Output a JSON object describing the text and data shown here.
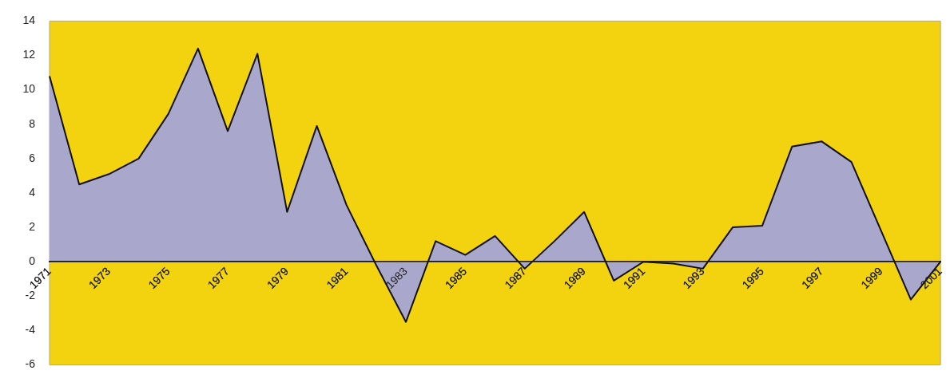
{
  "chart_data": {
    "type": "area",
    "categories": [
      "1971",
      null,
      "1973",
      null,
      "1975",
      null,
      "1977",
      null,
      "1979",
      null,
      "1981",
      null,
      "1983",
      null,
      "1985",
      null,
      "1987",
      null,
      "1989",
      null,
      "1991",
      null,
      "1993",
      null,
      "1995",
      null,
      "1997",
      null,
      "1999",
      null,
      "2001"
    ],
    "series": [
      {
        "color": "#a9a7cc",
        "values": [
          10.8,
          4.5,
          5.1,
          6.0,
          8.6,
          12.4,
          7.6,
          12.1,
          2.9,
          7.9,
          3.3,
          -0.2,
          -3.5,
          1.2,
          0.4,
          1.5,
          -0.4,
          1.2,
          2.9,
          -1.1,
          0,
          -0.1,
          -0.4,
          2.0,
          2.1,
          6.7,
          7.0,
          5.8,
          1.8,
          -2.2,
          0
        ]
      }
    ],
    "ylim": [
      -6,
      14
    ],
    "yticks": [
      -6,
      -4,
      -2,
      0,
      2,
      4,
      6,
      8,
      10,
      12,
      14
    ],
    "grid": false
  }
}
